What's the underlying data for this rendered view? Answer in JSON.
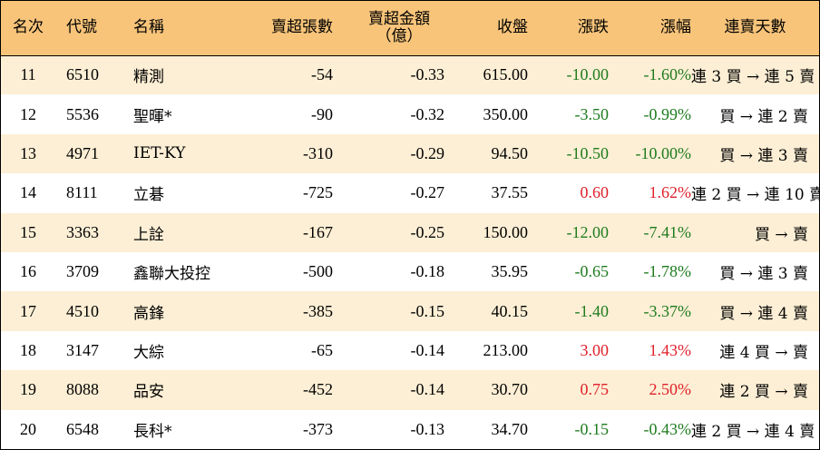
{
  "colors": {
    "header_bg": "#f7c47a",
    "stripe_bg": "#fdefd5",
    "up": "#e0202a",
    "down": "#1e7b1e"
  },
  "headers": {
    "rank": "名次",
    "code": "代號",
    "name": "名稱",
    "net_sell_volume": "賣超張數",
    "net_sell_amount_line1": "賣超金額",
    "net_sell_amount_line2": "（億）",
    "close": "收盤",
    "change": "漲跌",
    "change_pct": "漲幅",
    "streak": "連賣天數"
  },
  "rows": [
    {
      "rank": "11",
      "code": "6510",
      "name": "精測",
      "volume": "-54",
      "amount": "-0.33",
      "close": "615.00",
      "change": "-10.00",
      "pct": "-1.60%",
      "dir": "down",
      "streak": "連 3 買 → 連 5 賣"
    },
    {
      "rank": "12",
      "code": "5536",
      "name": "聖暉*",
      "volume": "-90",
      "amount": "-0.32",
      "close": "350.00",
      "change": "-3.50",
      "pct": "-0.99%",
      "dir": "down",
      "streak": "買 → 連 2 賣"
    },
    {
      "rank": "13",
      "code": "4971",
      "name": "IET-KY",
      "volume": "-310",
      "amount": "-0.29",
      "close": "94.50",
      "change": "-10.50",
      "pct": "-10.00%",
      "dir": "down",
      "streak": "買 → 連 3 賣"
    },
    {
      "rank": "14",
      "code": "8111",
      "name": "立碁",
      "volume": "-725",
      "amount": "-0.27",
      "close": "37.55",
      "change": "0.60",
      "pct": "1.62%",
      "dir": "up",
      "streak": "連 2 買 → 連 10 賣"
    },
    {
      "rank": "15",
      "code": "3363",
      "name": "上詮",
      "volume": "-167",
      "amount": "-0.25",
      "close": "150.00",
      "change": "-12.00",
      "pct": "-7.41%",
      "dir": "down",
      "streak": "買 → 賣"
    },
    {
      "rank": "16",
      "code": "3709",
      "name": "鑫聯大投控",
      "volume": "-500",
      "amount": "-0.18",
      "close": "35.95",
      "change": "-0.65",
      "pct": "-1.78%",
      "dir": "down",
      "streak": "買 → 連 3 賣"
    },
    {
      "rank": "17",
      "code": "4510",
      "name": "高鋒",
      "volume": "-385",
      "amount": "-0.15",
      "close": "40.15",
      "change": "-1.40",
      "pct": "-3.37%",
      "dir": "down",
      "streak": "買 → 連 4 賣"
    },
    {
      "rank": "18",
      "code": "3147",
      "name": "大綜",
      "volume": "-65",
      "amount": "-0.14",
      "close": "213.00",
      "change": "3.00",
      "pct": "1.43%",
      "dir": "up",
      "streak": "連 4 買 → 賣"
    },
    {
      "rank": "19",
      "code": "8088",
      "name": "品安",
      "volume": "-452",
      "amount": "-0.14",
      "close": "30.70",
      "change": "0.75",
      "pct": "2.50%",
      "dir": "up",
      "streak": "連 2 買 → 賣"
    },
    {
      "rank": "20",
      "code": "6548",
      "name": "長科*",
      "volume": "-373",
      "amount": "-0.13",
      "close": "34.70",
      "change": "-0.15",
      "pct": "-0.43%",
      "dir": "down",
      "streak": "連 2 買 → 連 4 賣"
    }
  ]
}
